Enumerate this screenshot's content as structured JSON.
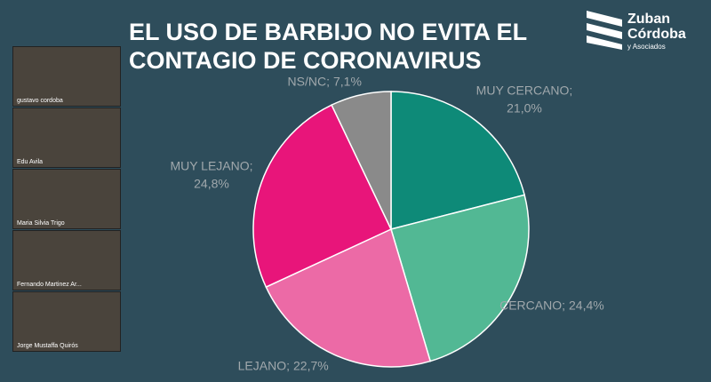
{
  "header": {
    "title_lines": [
      "EL USO DE BARBIJO NO EVITA EL",
      "CONTAGIO DE CORONAVIRUS"
    ]
  },
  "logo": {
    "lines": [
      "Zuban",
      "Córdoba",
      "y Asociados"
    ]
  },
  "participants": [
    "gustavo cordoba",
    "Edu Avila",
    "Maria Silvia Trigo",
    "Fernando Martinez Ar...",
    "Jorge Mustaffa Quirós"
  ],
  "chart_data": {
    "type": "pie",
    "categories": [
      "MUY CERCANO;",
      "CERCANO;",
      "LEJANO;",
      "MUY LEJANO;",
      "NS/NC;"
    ],
    "values": [
      21.0,
      24.4,
      22.7,
      24.8,
      7.1
    ],
    "value_labels": [
      "21,0%",
      "24,4%",
      "22,7%",
      "24,8%",
      "7,1%"
    ],
    "colors": [
      "#0e8a78",
      "#52b894",
      "#ec6aa6",
      "#e8157a",
      "#8a8a8a"
    ]
  }
}
